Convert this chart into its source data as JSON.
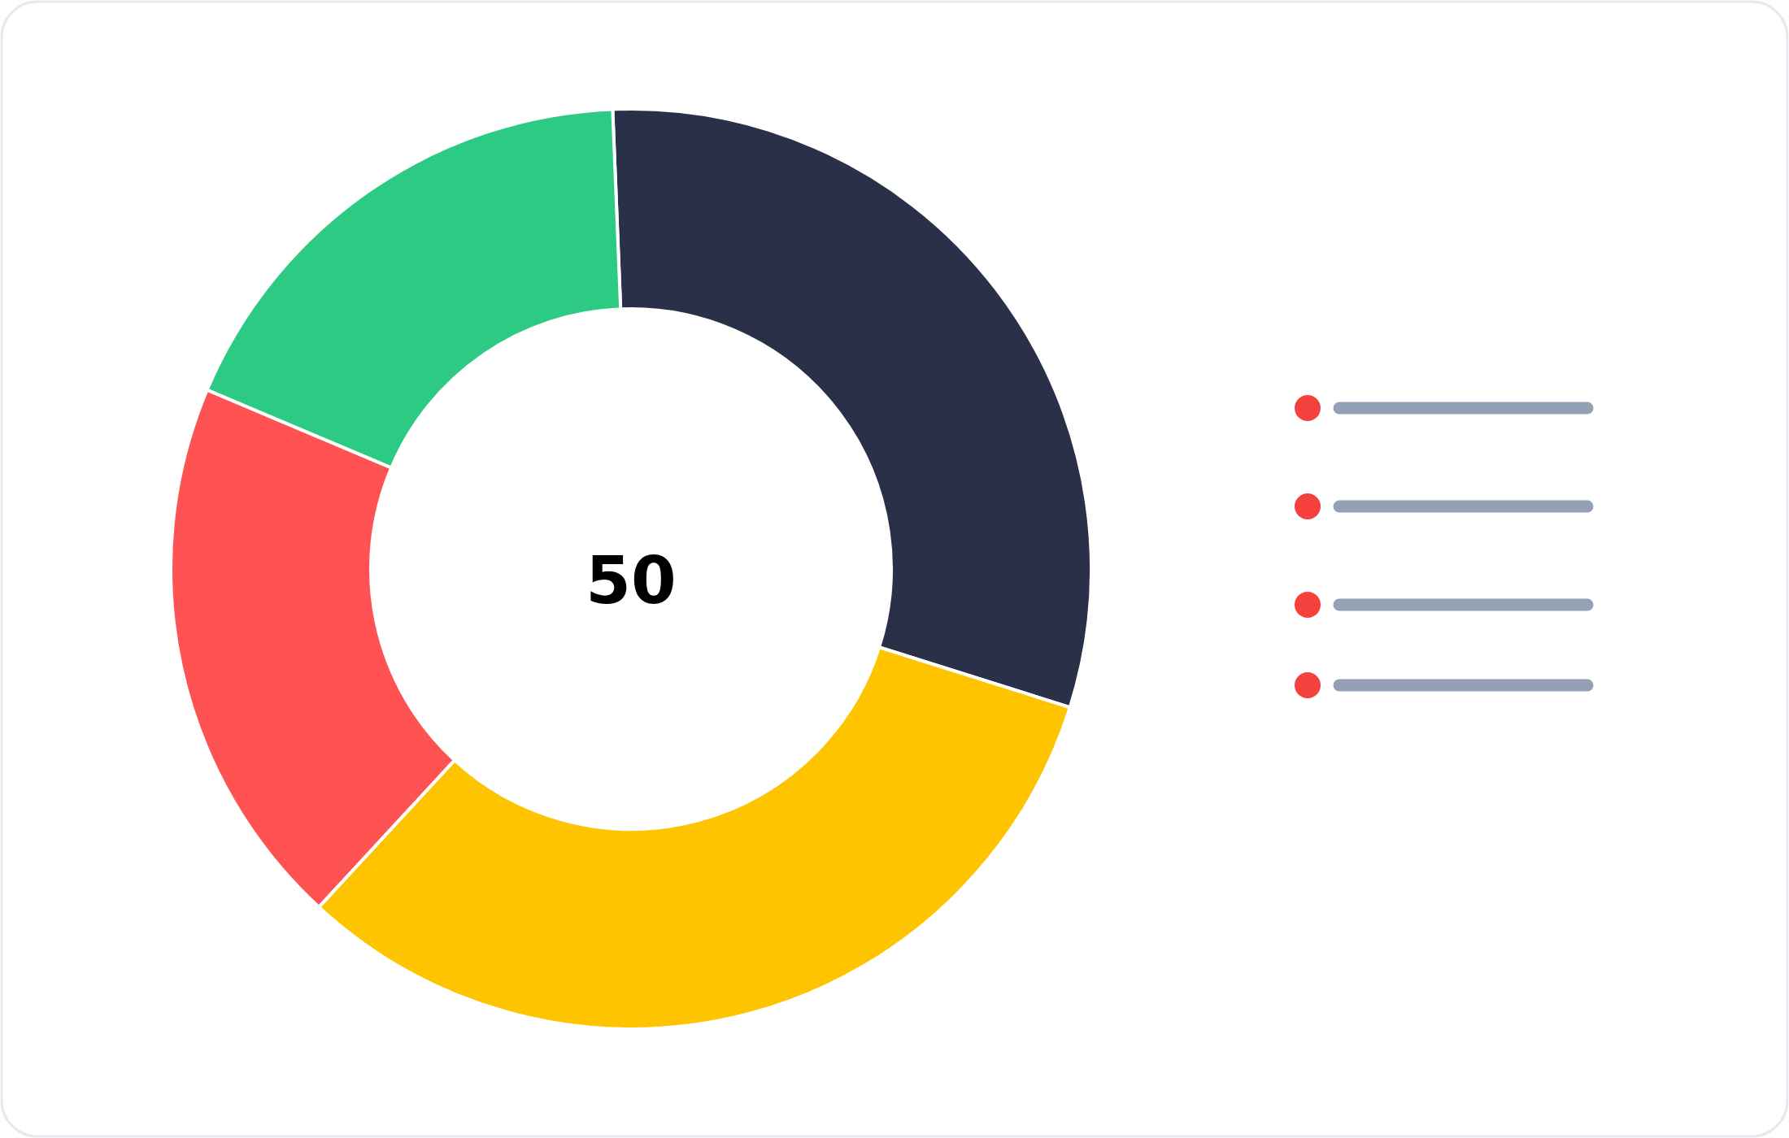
{
  "chart_data": {
    "type": "donut",
    "categories": [
      null,
      null,
      null,
      null
    ],
    "values": [
      30.5,
      32,
      19.5,
      18
    ],
    "colors": [
      "#2b3049",
      "#fec400",
      "#ff5252",
      "#2dca83"
    ],
    "annotations": [
      "50"
    ]
  }
}
